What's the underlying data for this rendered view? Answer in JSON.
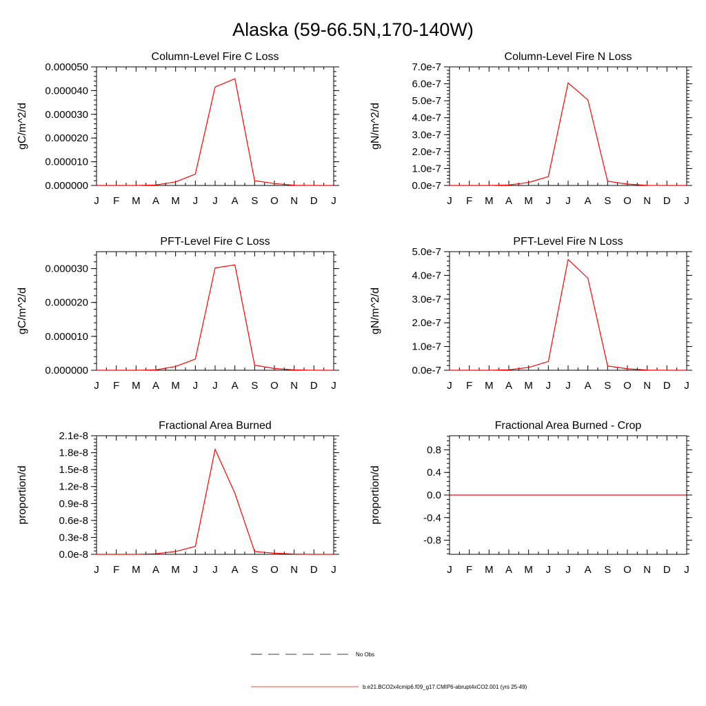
{
  "figure": {
    "title": "Alaska (59-66.5N,170-140W)"
  },
  "legend": {
    "entries": [
      {
        "label": "No Obs",
        "style": "dashed",
        "color": "#000000"
      },
      {
        "label": "b.e21.BCO2x4cmip6.f09_g17.CMIP6-abrupt4xCO2.001 (yrs 25-49)",
        "style": "solid",
        "color": "#ff0000"
      }
    ]
  },
  "chart_data": [
    {
      "type": "line",
      "title": "Column-Level Fire C Loss",
      "ylabel": "gC/m^2/d",
      "xlabel": "",
      "categories": [
        "J",
        "F",
        "M",
        "A",
        "M",
        "J",
        "J",
        "A",
        "S",
        "O",
        "N",
        "D",
        "J"
      ],
      "ylim": [
        0,
        5e-05
      ],
      "yticks": [
        0,
        1e-05,
        2e-05,
        3e-05,
        4e-05,
        5e-05
      ],
      "ytick_labels": [
        "0.000000",
        "0.000010",
        "0.000020",
        "0.000030",
        "0.000040",
        "0.000050"
      ],
      "series": [
        {
          "color": "#ff0000",
          "values": [
            0,
            0,
            0,
            2e-07,
            1.5e-06,
            4.8e-06,
            4.15e-05,
            4.5e-05,
            2e-06,
            8e-07,
            1e-07,
            0,
            0
          ]
        }
      ]
    },
    {
      "type": "line",
      "title": "Column-Level Fire N Loss",
      "ylabel": "gN/m^2/d",
      "xlabel": "",
      "categories": [
        "J",
        "F",
        "M",
        "A",
        "M",
        "J",
        "J",
        "A",
        "S",
        "O",
        "N",
        "D",
        "J"
      ],
      "ylim": [
        0,
        7e-07
      ],
      "yticks": [
        0,
        1e-07,
        2e-07,
        3e-07,
        4e-07,
        5e-07,
        6e-07,
        7e-07
      ],
      "ytick_labels": [
        "0.0e-7",
        "1.0e-7",
        "2.0e-7",
        "3.0e-7",
        "4.0e-7",
        "5.0e-7",
        "6.0e-7",
        "7.0e-7"
      ],
      "series": [
        {
          "color": "#ff0000",
          "values": [
            0,
            0,
            0,
            3e-09,
            1.8e-08,
            5.2e-08,
            6.05e-07,
            5.05e-07,
            2.5e-08,
            8e-09,
            1e-09,
            0,
            0
          ]
        }
      ]
    },
    {
      "type": "line",
      "title": "PFT-Level Fire C Loss",
      "ylabel": "gC/m^2/d",
      "xlabel": "",
      "categories": [
        "J",
        "F",
        "M",
        "A",
        "M",
        "J",
        "J",
        "A",
        "S",
        "O",
        "N",
        "D",
        "J"
      ],
      "ylim": [
        0,
        3.5e-05
      ],
      "yticks": [
        0,
        1e-05,
        2e-05,
        3e-05
      ],
      "ytick_labels": [
        "0.000000",
        "0.000010",
        "0.000020",
        "0.000030"
      ],
      "series": [
        {
          "color": "#ff0000",
          "values": [
            0,
            0,
            0,
            1e-07,
            1.1e-06,
            3.3e-06,
            3.02e-05,
            3.11e-05,
            1.5e-06,
            5e-07,
            1e-07,
            0,
            0
          ]
        }
      ]
    },
    {
      "type": "line",
      "title": "PFT-Level Fire N Loss",
      "ylabel": "gN/m^2/d",
      "xlabel": "",
      "categories": [
        "J",
        "F",
        "M",
        "A",
        "M",
        "J",
        "J",
        "A",
        "S",
        "O",
        "N",
        "D",
        "J"
      ],
      "ylim": [
        0,
        5e-07
      ],
      "yticks": [
        0,
        1e-07,
        2e-07,
        3e-07,
        4e-07,
        5e-07
      ],
      "ytick_labels": [
        "0.0e-7",
        "1.0e-7",
        "2.0e-7",
        "3.0e-7",
        "4.0e-7",
        "5.0e-7"
      ],
      "series": [
        {
          "color": "#ff0000",
          "values": [
            0,
            0,
            0,
            2e-09,
            1.2e-08,
            3.7e-08,
            4.67e-07,
            3.88e-07,
            1.8e-08,
            6e-09,
            1e-09,
            0,
            0
          ]
        }
      ]
    },
    {
      "type": "line",
      "title": "Fractional Area Burned",
      "ylabel": "proportion/d",
      "xlabel": "",
      "categories": [
        "J",
        "F",
        "M",
        "A",
        "M",
        "J",
        "J",
        "A",
        "S",
        "O",
        "N",
        "D",
        "J"
      ],
      "ylim": [
        0,
        2.1e-08
      ],
      "yticks": [
        0,
        3e-09,
        6e-09,
        9e-09,
        1.2e-08,
        1.5e-08,
        1.8e-08,
        2.1e-08
      ],
      "ytick_labels": [
        "0.0e-8",
        "0.3e-8",
        "0.6e-8",
        "0.9e-8",
        "1.2e-8",
        "1.5e-8",
        "1.8e-8",
        "2.1e-8"
      ],
      "series": [
        {
          "color": "#ff0000",
          "values": [
            0,
            0,
            0,
            1e-10,
            5e-10,
            1.4e-09,
            1.86e-08,
            1.08e-08,
            5e-10,
            2e-10,
            5e-11,
            0,
            0
          ]
        }
      ]
    },
    {
      "type": "line",
      "title": "Fractional Area Burned - Crop",
      "ylabel": "proportion/d",
      "xlabel": "",
      "categories": [
        "J",
        "F",
        "M",
        "A",
        "M",
        "J",
        "J",
        "A",
        "S",
        "O",
        "N",
        "D",
        "J"
      ],
      "ylim": [
        -1.05,
        1.05
      ],
      "yticks": [
        -0.8,
        -0.4,
        0,
        0.4,
        0.8
      ],
      "ytick_labels": [
        "-0.8",
        "-0.4",
        "0.0",
        "0.4",
        "0.8"
      ],
      "series": [
        {
          "color": "#ff0000",
          "values": [
            0,
            0,
            0,
            0,
            0,
            0,
            0,
            0,
            0,
            0,
            0,
            0,
            0
          ]
        }
      ]
    }
  ]
}
